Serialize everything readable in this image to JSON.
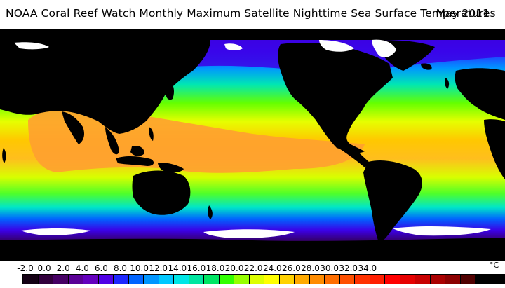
{
  "title": "NOAA Coral Reef Watch Monthly Maximum Satellite Nighttime Sea Surface Temperatures",
  "date": "May 2011",
  "legend": {
    "unit": "°C",
    "ticks": [
      "-2.0",
      "0.0",
      "2.0",
      "4.0",
      "6.0",
      "8.0",
      "10.0",
      "12.0",
      "14.0",
      "16.0",
      "18.0",
      "20.0",
      "22.0",
      "24.0",
      "26.0",
      "28.0",
      "30.0",
      "32.0",
      "34.0"
    ],
    "colors": [
      "#140014",
      "#32003c",
      "#460064",
      "#5a0096",
      "#6400be",
      "#5000e6",
      "#1e28ff",
      "#0064ff",
      "#0096ff",
      "#00c8ff",
      "#00e6e6",
      "#00e6a0",
      "#00e664",
      "#32ff00",
      "#96ff00",
      "#dcff00",
      "#ffff00",
      "#ffd200",
      "#ffaa00",
      "#ff8c00",
      "#ff6e00",
      "#ff5000",
      "#ff3200",
      "#ff1e00",
      "#ff0000",
      "#e60000",
      "#c80000",
      "#aa0000",
      "#8c0000",
      "#500000",
      "#000000",
      "#000000"
    ]
  },
  "map": {
    "ocean_colors": {
      "polar": "#5a0096",
      "subpolar": "#1e3cff",
      "cool": "#00b4ff",
      "temperate": "#00e68c",
      "warm": "#b4ff00",
      "hot": "#ffd200",
      "warmpool": "#ffa030"
    },
    "land_color": "#000000",
    "ice_color": "#ffffff"
  }
}
